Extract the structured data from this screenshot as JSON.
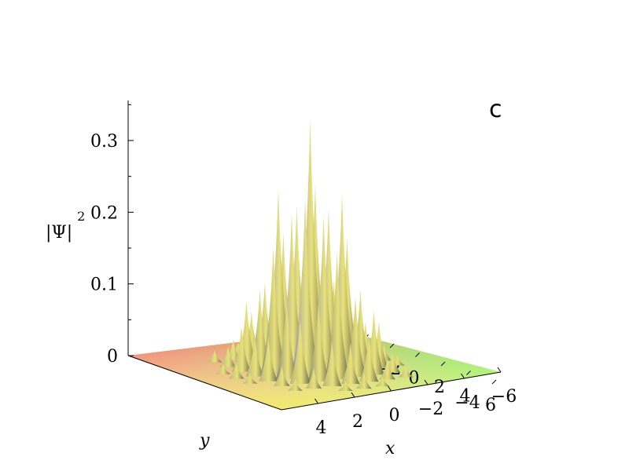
{
  "chart_data": {
    "type": "surface3d",
    "panel_label": "c",
    "zlabel": "|Ψ|",
    "zlabel_power": "2",
    "xlabel": "x",
    "ylabel": "y",
    "xlim": [
      -6,
      6
    ],
    "ylim": [
      -6,
      6
    ],
    "zlim": [
      0,
      0.35
    ],
    "z_ticks": [
      {
        "value": 0,
        "label": "0"
      },
      {
        "value": 0.1,
        "label": "0.1"
      },
      {
        "value": 0.2,
        "label": "0.2"
      },
      {
        "value": 0.3,
        "label": "0.3"
      }
    ],
    "x_ticks": [
      {
        "value": 4,
        "label": "4"
      },
      {
        "value": 2,
        "label": "2"
      },
      {
        "value": 0,
        "label": "0"
      },
      {
        "value": -2,
        "label": "−2"
      },
      {
        "value": -4,
        "label": "−4"
      },
      {
        "value": -6,
        "label": "−6"
      }
    ],
    "y_ticks": [
      {
        "value": -6,
        "label": "−6"
      },
      {
        "value": -4,
        "label": "−4"
      },
      {
        "value": -2,
        "label": "−2"
      },
      {
        "value": 0,
        "label": "0"
      },
      {
        "value": 2,
        "label": "2"
      },
      {
        "value": 4,
        "label": "4"
      },
      {
        "value": 6,
        "label": "6"
      }
    ],
    "peak_value": 0.35,
    "grid": false,
    "colors": {
      "corner_x6_yneg6": "#f06a5e",
      "corner_xneg6_yneg6": "#c8c86a",
      "corner_xneg6_y6": "#6ef04a",
      "corner_x6_y6": "#f0f06a",
      "peak_top": "#8a8ac8"
    }
  }
}
